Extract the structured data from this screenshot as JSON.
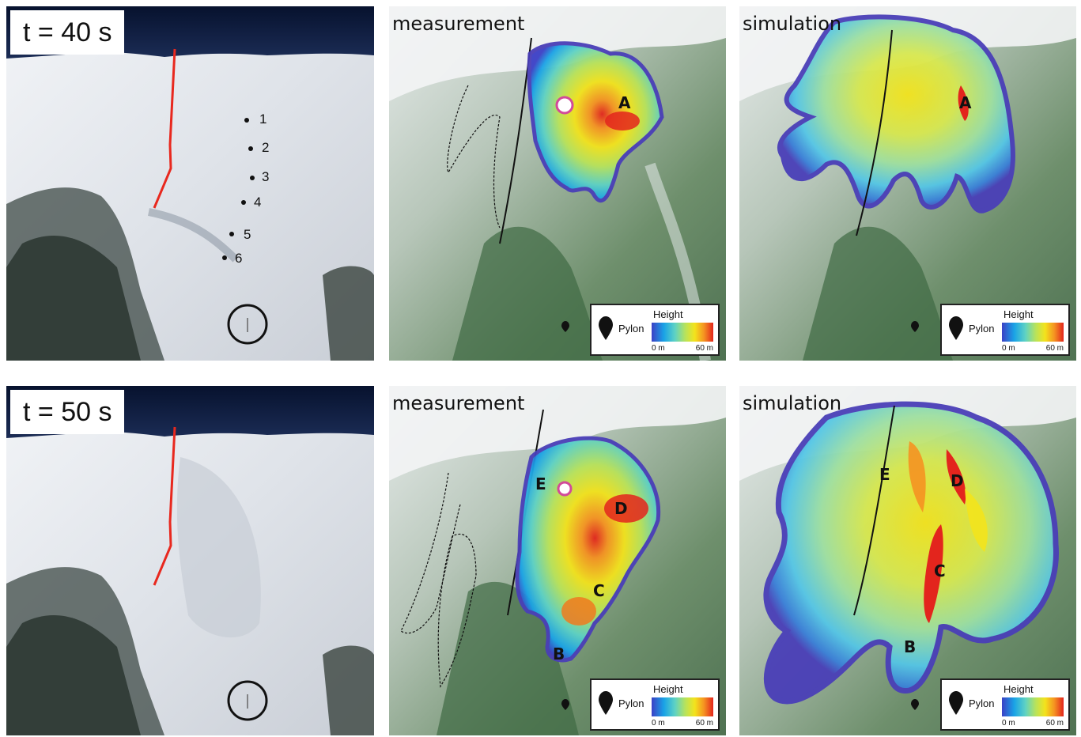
{
  "rows": [
    {
      "time_label": "t = 40 s",
      "photo_points": [
        "1",
        "2",
        "3",
        "4",
        "5",
        "6"
      ],
      "measurement": {
        "title": "measurement",
        "zones": [
          "A"
        ]
      },
      "simulation": {
        "title": "simulation",
        "zones": [
          "A"
        ]
      }
    },
    {
      "time_label": "t = 50 s",
      "photo_points": [],
      "measurement": {
        "title": "measurement",
        "zones": [
          "E",
          "D",
          "C",
          "B"
        ]
      },
      "simulation": {
        "title": "simulation",
        "zones": [
          "E",
          "D",
          "C",
          "B"
        ]
      }
    }
  ],
  "legend": {
    "pylon_label": "Pylon",
    "height_label": "Height",
    "min_label": "0 m",
    "max_label": "60 m",
    "pylon_icon": "pylon-marker-icon",
    "colors": [
      "#3b40c6",
      "#1aa3e6",
      "#5ed2c4",
      "#b9e35a",
      "#f3e31c",
      "#f59221",
      "#e3251d"
    ]
  },
  "colors": {
    "trajectory_line": "#e8281e",
    "sky": "#0c1a3a",
    "snow": "#e9ecf0",
    "terrain_green": "#6f8f6a"
  }
}
